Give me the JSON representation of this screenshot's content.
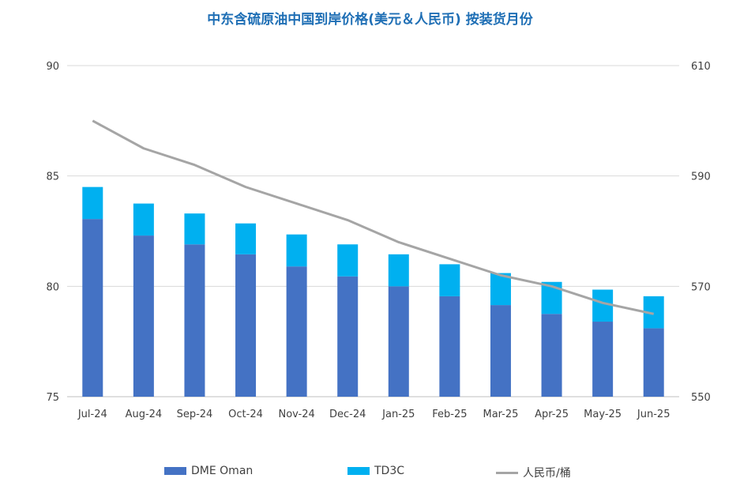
{
  "chart_data": {
    "type": "bar",
    "title": "中东含硫原油中国到岸价格(美元＆人民币) 按装货月份",
    "categories": [
      "Jul-24",
      "Aug-24",
      "Sep-24",
      "Oct-24",
      "Nov-24",
      "Dec-24",
      "Jan-25",
      "Feb-25",
      "Mar-25",
      "Apr-25",
      "May-25",
      "Jun-25"
    ],
    "series": [
      {
        "name": "DME Oman",
        "type": "stacked-bar",
        "axis": "left",
        "color": "#4472c4",
        "values": [
          83.05,
          82.3,
          81.9,
          81.45,
          80.9,
          80.45,
          80.0,
          79.55,
          79.15,
          78.75,
          78.4,
          78.1
        ]
      },
      {
        "name": "TD3C",
        "type": "stacked-bar",
        "axis": "left",
        "color": "#00b0f0",
        "values": [
          1.45,
          1.45,
          1.4,
          1.4,
          1.45,
          1.45,
          1.45,
          1.45,
          1.45,
          1.45,
          1.45,
          1.45
        ]
      },
      {
        "name": "人民币/桶",
        "type": "line",
        "axis": "right",
        "color": "#a5a5a5",
        "values": [
          600,
          595,
          592,
          588,
          585,
          582,
          578,
          575,
          572,
          570,
          567,
          565
        ]
      }
    ],
    "ylim_left": [
      75,
      90
    ],
    "yticks_left": [
      "75",
      "80",
      "85",
      "90"
    ],
    "ylim_right": [
      550,
      610
    ],
    "yticks_right": [
      "550",
      "570",
      "590",
      "610"
    ],
    "grid": true,
    "legend_position": "bottom"
  }
}
